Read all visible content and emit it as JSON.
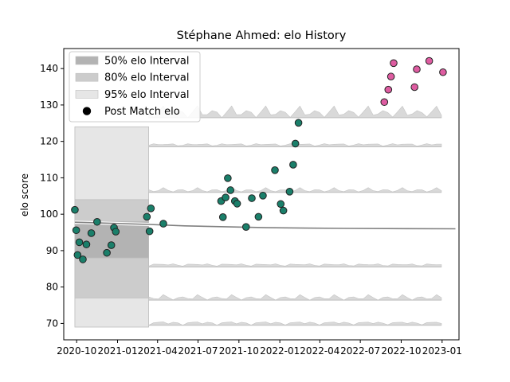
{
  "chart_data": {
    "type": "scatter",
    "title": "Stéphane Ahmed: elo History",
    "xlabel": "",
    "ylabel": "elo score",
    "x_ticks": [
      "2020-10",
      "2021-01",
      "2021-04",
      "2021-07",
      "2021-10",
      "2022-01",
      "2022-04",
      "2022-07",
      "2022-10",
      "2023-01"
    ],
    "x_tick_dates": [
      "2020-10-01",
      "2021-01-01",
      "2021-04-01",
      "2021-07-01",
      "2021-10-01",
      "2022-01-01",
      "2022-04-01",
      "2022-07-01",
      "2022-10-01",
      "2023-01-01"
    ],
    "xlim": [
      "2020-09-02",
      "2023-02-08"
    ],
    "ylim": [
      65.5,
      145.5
    ],
    "y_ticks": [
      70,
      80,
      90,
      100,
      110,
      120,
      130,
      140
    ],
    "grid": false,
    "legend_placement": "upper-left",
    "legend": [
      {
        "label": "50% elo Interval",
        "kind": "band",
        "color": "#b3b3b3"
      },
      {
        "label": "80% elo Interval",
        "kind": "band",
        "color": "#cccccc"
      },
      {
        "label": "95% elo Interval",
        "kind": "band",
        "color": "#e6e6e6"
      },
      {
        "label": "Post Match elo",
        "kind": "marker",
        "color": "#000000"
      }
    ],
    "interval_bands": {
      "date_range": [
        "2020-09-27",
        "2021-03-12"
      ],
      "band_50": [
        88,
        98
      ],
      "band_80": [
        77,
        104
      ],
      "band_95": [
        69,
        124
      ]
    },
    "mean_line": {
      "x": [
        "2020-09-27",
        "2021-03-12",
        "2021-06-01",
        "2021-12-01",
        "2022-06-01",
        "2023-01-31"
      ],
      "y": [
        97.8,
        97.2,
        96.8,
        96.3,
        96.1,
        96.0
      ]
    },
    "series": [
      {
        "color": "#1a7f6a",
        "points": [
          {
            "x": "2020-09-27",
            "y": 101.2
          },
          {
            "x": "2020-09-30",
            "y": 95.6
          },
          {
            "x": "2020-10-03",
            "y": 88.8
          },
          {
            "x": "2020-10-07",
            "y": 92.3
          },
          {
            "x": "2020-10-15",
            "y": 87.6
          },
          {
            "x": "2020-10-23",
            "y": 91.7
          },
          {
            "x": "2020-11-03",
            "y": 94.8
          },
          {
            "x": "2020-11-16",
            "y": 97.9
          },
          {
            "x": "2020-12-08",
            "y": 89.4
          },
          {
            "x": "2020-12-18",
            "y": 91.5
          },
          {
            "x": "2020-12-24",
            "y": 96.3
          },
          {
            "x": "2020-12-28",
            "y": 95.2
          },
          {
            "x": "2021-03-08",
            "y": 99.3
          },
          {
            "x": "2021-03-14",
            "y": 95.3
          },
          {
            "x": "2021-03-17",
            "y": 101.6
          },
          {
            "x": "2021-04-14",
            "y": 97.4
          },
          {
            "x": "2021-08-22",
            "y": 103.6
          },
          {
            "x": "2021-08-26",
            "y": 99.2
          },
          {
            "x": "2021-09-01",
            "y": 104.6
          },
          {
            "x": "2021-09-06",
            "y": 109.9
          },
          {
            "x": "2021-09-12",
            "y": 106.6
          },
          {
            "x": "2021-09-22",
            "y": 103.6
          },
          {
            "x": "2021-09-27",
            "y": 102.9
          },
          {
            "x": "2021-10-17",
            "y": 96.5
          },
          {
            "x": "2021-10-30",
            "y": 104.4
          },
          {
            "x": "2021-11-14",
            "y": 99.3
          },
          {
            "x": "2021-11-24",
            "y": 105.1
          },
          {
            "x": "2021-12-21",
            "y": 112.1
          },
          {
            "x": "2022-01-03",
            "y": 102.8
          },
          {
            "x": "2022-01-09",
            "y": 101.0
          },
          {
            "x": "2022-01-23",
            "y": 106.2
          },
          {
            "x": "2022-01-31",
            "y": 113.6
          },
          {
            "x": "2022-02-05",
            "y": 119.4
          },
          {
            "x": "2022-02-12",
            "y": 125.1
          }
        ]
      },
      {
        "color": "#de5ca1",
        "points": [
          {
            "x": "2022-08-24",
            "y": 130.8
          },
          {
            "x": "2022-09-02",
            "y": 134.2
          },
          {
            "x": "2022-09-08",
            "y": 137.8
          },
          {
            "x": "2022-09-14",
            "y": 141.5
          },
          {
            "x": "2022-10-31",
            "y": 134.9
          },
          {
            "x": "2022-11-05",
            "y": 139.8
          },
          {
            "x": "2022-12-03",
            "y": 142.1
          },
          {
            "x": "2023-01-03",
            "y": 139.0
          }
        ]
      }
    ]
  }
}
